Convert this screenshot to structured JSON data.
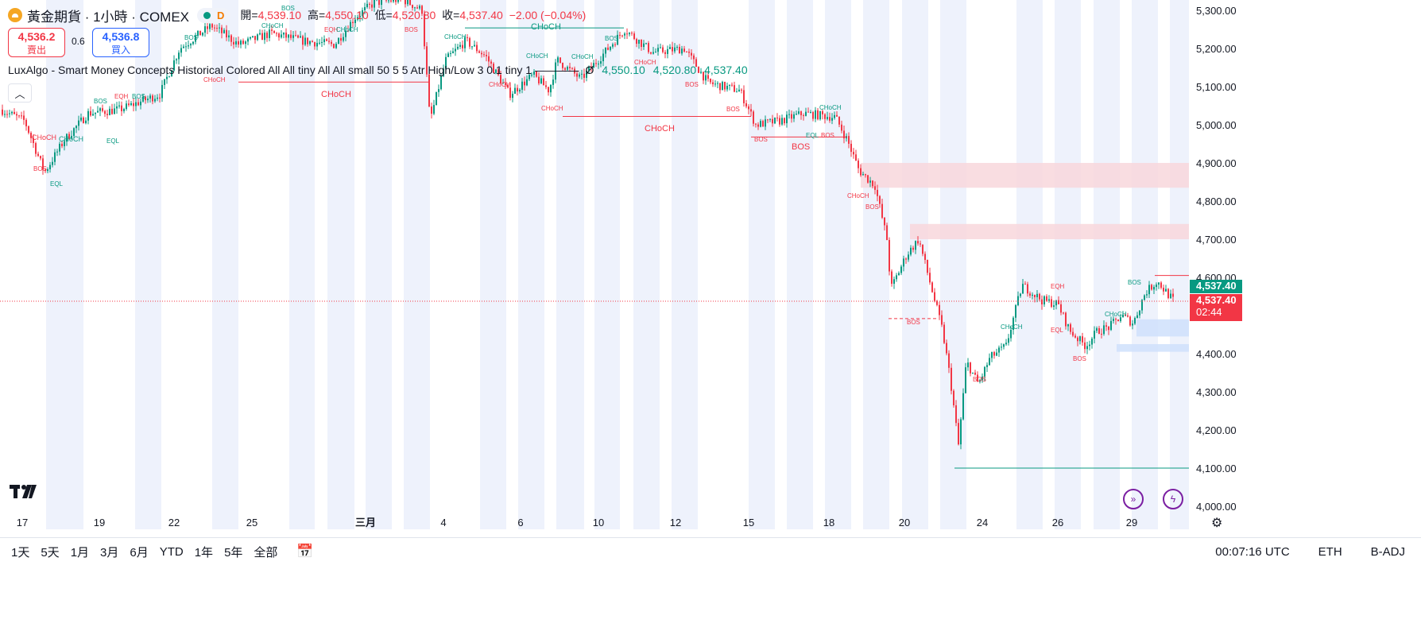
{
  "header": {
    "symbol_title": "黃金期貨 · 1小時 · COMEX",
    "d_badge": "D",
    "open_label": "開=",
    "open_value": "4,539.10",
    "high_label": "高=",
    "high_value": "4,550.10",
    "low_label": "低=",
    "low_value": "4,520.80",
    "close_label": "收=",
    "close_value": "4,537.40",
    "change": "−2.00 (−0.04%)"
  },
  "trade": {
    "sell_price": "4,536.2",
    "sell_label": "賣出",
    "spread": "0.6",
    "buy_price": "4,536.8",
    "buy_label": "買入"
  },
  "indicator": {
    "name": "LuxAlgo - Smart Money Concepts Historical Colored All All tiny All All small 50 5 5 Atr High/Low 3 0.1 tiny 1",
    "symbol": "Ø",
    "v1": "4,550.10",
    "v2": "4,520.80",
    "v3": "4,537.40"
  },
  "price_axis": {
    "labels": [
      "5,300.00",
      "5,200.00",
      "5,100.00",
      "5,000.00",
      "4,900.00",
      "4,800.00",
      "4,700.00",
      "4,600.00",
      "4,400.00",
      "4,300.00",
      "4,200.00",
      "4,100.00",
      "4,000.00"
    ],
    "last_price": "4,537.40",
    "bid_price": "4,537.40",
    "countdown": "02:44"
  },
  "time_axis": {
    "labels": [
      "17",
      "19",
      "22",
      "25",
      "三月",
      "4",
      "6",
      "10",
      "12",
      "15",
      "18",
      "20",
      "24",
      "26",
      "29"
    ]
  },
  "chart_data": {
    "type": "candlestick",
    "ylim": [
      3990,
      5330
    ],
    "annotations": [
      "CHoCH",
      "BOS",
      "EQH",
      "EQL"
    ],
    "zones": [
      {
        "type": "supply",
        "from": 4835,
        "to": 4900
      },
      {
        "type": "supply",
        "from": 4700,
        "to": 4740
      },
      {
        "type": "demand",
        "from": 4445,
        "to": 4490
      },
      {
        "type": "demand",
        "from": 4405,
        "to": 4425
      }
    ],
    "lines": [
      {
        "label": "CHoCH",
        "price": 5112,
        "color": "#f23645"
      },
      {
        "label": "CHoCH",
        "price": 5022,
        "color": "#f23645"
      },
      {
        "label": "CHoCH",
        "price": 5254,
        "color": "#089981"
      },
      {
        "label": "BOS",
        "price": 4968,
        "color": "#f23645"
      },
      {
        "label": "BOS",
        "price": 4100,
        "color": "#089981"
      }
    ],
    "last": 4537.4,
    "colors": {
      "up": "#089981",
      "down": "#f23645"
    }
  },
  "bottom_bar": {
    "ranges": [
      "1天",
      "5天",
      "1月",
      "3月",
      "6月",
      "YTD",
      "1年",
      "5年",
      "全部"
    ],
    "clock": "00:07:16 UTC",
    "session": "ETH",
    "adj": "B-ADJ"
  },
  "icons": [
    "tradingview-logo-icon",
    "calendar-range-icon",
    "replay-icon",
    "lightning-icon",
    "settings-icon"
  ]
}
